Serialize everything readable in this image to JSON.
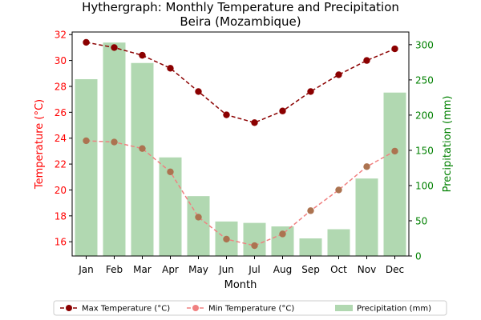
{
  "chart_data": {
    "type": "bar+line",
    "title": "Hythergraph: Monthly Temperature and Precipitation\nBeira (Mozambique)",
    "xlabel": "Month",
    "ylabel_left": "Temperature (°C)",
    "ylabel_right": "Precipitation (mm)",
    "categories": [
      "Jan",
      "Feb",
      "Mar",
      "Apr",
      "May",
      "Jun",
      "Jul",
      "Aug",
      "Sep",
      "Oct",
      "Nov",
      "Dec"
    ],
    "ylim_left": [
      14.9,
      32.2
    ],
    "yticks_left": [
      16,
      18,
      20,
      22,
      24,
      26,
      28,
      30,
      32
    ],
    "ylim_right": [
      0,
      318
    ],
    "yticks_right": [
      0,
      50,
      100,
      150,
      200,
      250,
      300
    ],
    "series": [
      {
        "name": "Max Temperature (°C)",
        "axis": "left",
        "kind": "line",
        "color": "#8b0000",
        "dashed": true,
        "values": [
          31.4,
          31.0,
          30.4,
          29.4,
          27.6,
          25.8,
          25.2,
          26.1,
          27.6,
          28.9,
          30.0,
          30.9
        ]
      },
      {
        "name": "Min Temperature (°C)",
        "axis": "left",
        "kind": "line",
        "color": "#f08080",
        "marker_color": "#ac7350",
        "dashed": true,
        "values": [
          23.8,
          23.7,
          23.2,
          21.4,
          17.9,
          16.2,
          15.7,
          16.6,
          18.4,
          20.0,
          21.8,
          23.0
        ]
      },
      {
        "name": "Precipitation (mm)",
        "axis": "right",
        "kind": "bar",
        "color": "#b1d8b1",
        "values": [
          251,
          303,
          274,
          140,
          85,
          49,
          47,
          42,
          25,
          38,
          110,
          232
        ]
      }
    ],
    "legend_placement": "bottom-center",
    "grid": false,
    "colors": {
      "left_axis": "#ff0000",
      "right_axis": "#008000",
      "axis": "#000000"
    }
  }
}
